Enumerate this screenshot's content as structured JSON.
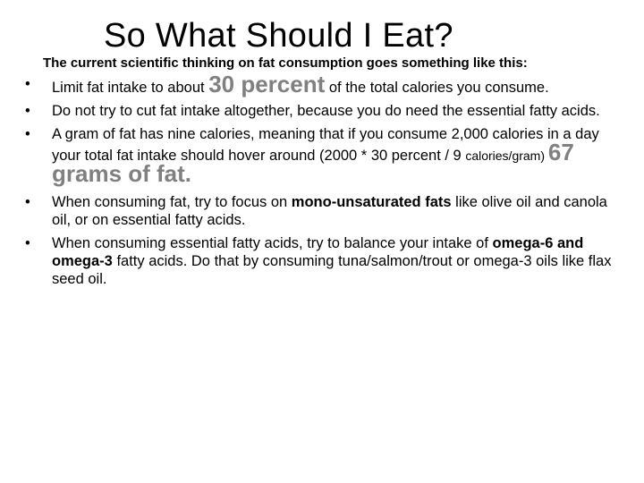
{
  "slide": {
    "title": "So What Should I Eat?",
    "subtitle": "The current scientific thinking on fat consumption goes something like this:",
    "bullet_glyph": "•",
    "bullets": [
      {
        "text_before": "Limit  fat intake to about ",
        "highlight": "30 percent",
        "text_after": " of the total calories you consume."
      },
      {
        "text": "Do not try to cut fat intake altogether, because you do need the essential fatty acids."
      },
      {
        "text_before": " A gram of fat has nine calories, meaning that if you consume 2,000 calories in a day your total fat intake should hover around (2000 * 30 percent / 9 ",
        "small_text": "calories/gram) ",
        "highlight": "67 grams of fat."
      },
      {
        "text_before": "When consuming fat, try to focus on ",
        "bold_text": "mono-unsaturated fats",
        "text_after": " like olive oil and canola oil, or on essential fatty acids."
      },
      {
        "text_before": "When consuming essential fatty acids, try to balance your intake of ",
        "bold_text": "omega-6 and omega-3",
        "text_after": " fatty acids. Do that by consuming tuna/salmon/trout or omega-3 oils like flax seed oil."
      }
    ]
  },
  "colors": {
    "highlight": "#808080",
    "text": "#000000",
    "background": "#ffffff"
  }
}
